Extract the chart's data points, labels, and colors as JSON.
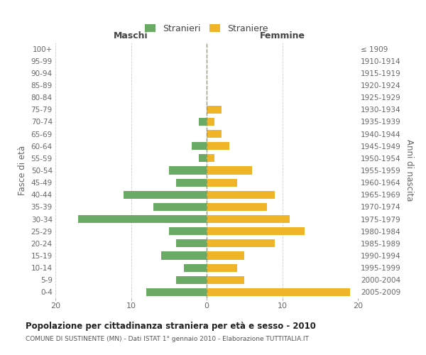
{
  "age_groups": [
    "100+",
    "95-99",
    "90-94",
    "85-89",
    "80-84",
    "75-79",
    "70-74",
    "65-69",
    "60-64",
    "55-59",
    "50-54",
    "45-49",
    "40-44",
    "35-39",
    "30-34",
    "25-29",
    "20-24",
    "15-19",
    "10-14",
    "5-9",
    "0-4"
  ],
  "birth_years": [
    "≤ 1909",
    "1910-1914",
    "1915-1919",
    "1920-1924",
    "1925-1929",
    "1930-1934",
    "1935-1939",
    "1940-1944",
    "1945-1949",
    "1950-1954",
    "1955-1959",
    "1960-1964",
    "1965-1969",
    "1970-1974",
    "1975-1979",
    "1980-1984",
    "1985-1989",
    "1990-1994",
    "1995-1999",
    "2000-2004",
    "2005-2009"
  ],
  "maschi": [
    0,
    0,
    0,
    0,
    0,
    0,
    1,
    0,
    2,
    1,
    5,
    4,
    11,
    7,
    17,
    5,
    4,
    6,
    3,
    4,
    8
  ],
  "femmine": [
    0,
    0,
    0,
    0,
    0,
    2,
    1,
    2,
    3,
    1,
    6,
    4,
    9,
    8,
    11,
    13,
    9,
    5,
    4,
    5,
    19
  ],
  "male_color": "#6aaa64",
  "female_color": "#f0b429",
  "title": "Popolazione per cittadinanza straniera per età e sesso - 2010",
  "subtitle": "COMUNE DI SUSTINENTE (MN) - Dati ISTAT 1° gennaio 2010 - Elaborazione TUTTITALIA.IT",
  "xlabel_left": "Maschi",
  "xlabel_right": "Femmine",
  "ylabel_left": "Fasce di età",
  "ylabel_right": "Anni di nascita",
  "legend_stranieri": "Stranieri",
  "legend_straniere": "Straniere",
  "xlim": 20,
  "background_color": "#ffffff",
  "grid_color": "#cccccc"
}
